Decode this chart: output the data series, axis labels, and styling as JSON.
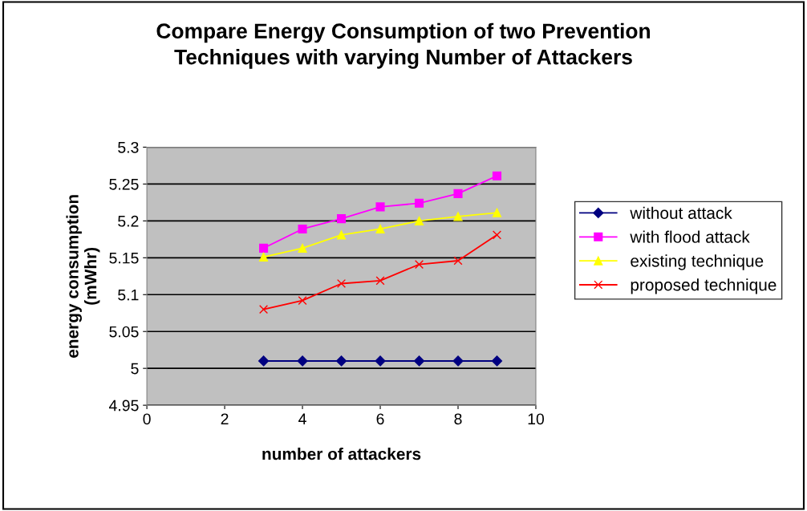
{
  "chart_data": {
    "type": "line",
    "title": "Compare Energy Consumption of two Prevention\nTechniques with varying Number of Attackers",
    "xlabel": "number of attackers",
    "ylabel": "energy consumption\n(mWhr)",
    "x": [
      3,
      4,
      5,
      6,
      7,
      8,
      9
    ],
    "series": [
      {
        "name": "without attack",
        "color": "#000080",
        "marker": "diamond",
        "values": [
          5.01,
          5.01,
          5.01,
          5.01,
          5.01,
          5.01,
          5.01
        ]
      },
      {
        "name": "with flood attack",
        "color": "#ff00ff",
        "marker": "square",
        "values": [
          5.163,
          5.189,
          5.203,
          5.219,
          5.224,
          5.237,
          5.261
        ]
      },
      {
        "name": "existing technique",
        "color": "#ffff00",
        "marker": "triangle",
        "values": [
          5.151,
          5.163,
          5.181,
          5.189,
          5.2,
          5.206,
          5.211
        ]
      },
      {
        "name": "proposed technique",
        "color": "#ff0000",
        "marker": "cross",
        "values": [
          5.08,
          5.092,
          5.115,
          5.119,
          5.141,
          5.146,
          5.181
        ]
      }
    ],
    "xlim": [
      0,
      10
    ],
    "xticks": [
      0,
      2,
      4,
      6,
      8,
      10
    ],
    "ylim": [
      4.95,
      5.3
    ],
    "yticks": [
      {
        "value": 4.95,
        "label": "4.95"
      },
      {
        "value": 5,
        "label": "5"
      },
      {
        "value": 5.05,
        "label": "5.05"
      },
      {
        "value": 5.1,
        "label": "5.1"
      },
      {
        "value": 5.15,
        "label": "5.15"
      },
      {
        "value": 5.2,
        "label": "5.2"
      },
      {
        "value": 5.25,
        "label": "5.25"
      },
      {
        "value": 5.3,
        "label": "5.3"
      }
    ],
    "grid": "y",
    "legend": "right",
    "line_style": "solid"
  }
}
